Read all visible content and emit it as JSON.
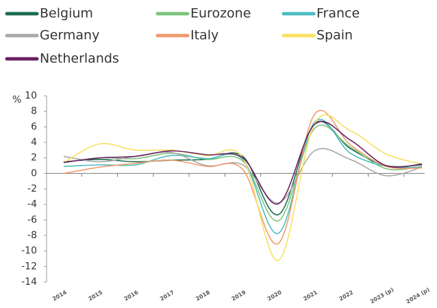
{
  "chart_data": {
    "type": "line",
    "categories": [
      "2014",
      "2015",
      "2016",
      "2017",
      "2018",
      "2019",
      "2020",
      "2021",
      "2022",
      "2023 (p)",
      "2024 (p)"
    ],
    "y_label": "%",
    "ylim": [
      -14,
      10
    ],
    "yticks": [
      10,
      8,
      6,
      4,
      2,
      0,
      -2,
      -4,
      -6,
      -8,
      -10,
      -12,
      -14
    ],
    "series": [
      {
        "name": "Belgium",
        "color": "#1b6b4e",
        "values": [
          1.5,
          1.8,
          1.5,
          1.7,
          1.8,
          2.2,
          -5.3,
          6.4,
          3.2,
          1.0,
          1.1
        ]
      },
      {
        "name": "Eurozone",
        "color": "#7cc47c",
        "values": [
          1.4,
          2.0,
          1.9,
          2.6,
          1.8,
          1.6,
          -6.1,
          5.8,
          3.4,
          0.6,
          0.9
        ]
      },
      {
        "name": "France",
        "color": "#4cbcbf",
        "values": [
          0.9,
          1.1,
          1.1,
          2.3,
          1.9,
          1.8,
          -7.7,
          6.6,
          2.6,
          0.9,
          0.8
        ]
      },
      {
        "name": "Germany",
        "color": "#a8a8a8",
        "values": [
          2.2,
          1.5,
          2.2,
          2.7,
          1.0,
          1.1,
          -3.8,
          2.9,
          1.8,
          -0.3,
          0.8
        ]
      },
      {
        "name": "Italy",
        "color": "#f09a6c",
        "values": [
          0.0,
          0.8,
          1.3,
          1.7,
          0.9,
          0.5,
          -9.0,
          7.6,
          3.7,
          0.9,
          0.7
        ]
      },
      {
        "name": "Spain",
        "color": "#f8df5e",
        "values": [
          1.4,
          3.8,
          3.0,
          3.0,
          2.3,
          2.0,
          -11.2,
          6.4,
          5.5,
          2.5,
          1.2
        ]
      },
      {
        "name": "Netherlands",
        "color": "#6b1f62",
        "values": [
          1.4,
          2.0,
          2.2,
          2.9,
          2.4,
          2.0,
          -3.9,
          6.3,
          4.3,
          1.0,
          1.2
        ]
      }
    ]
  }
}
